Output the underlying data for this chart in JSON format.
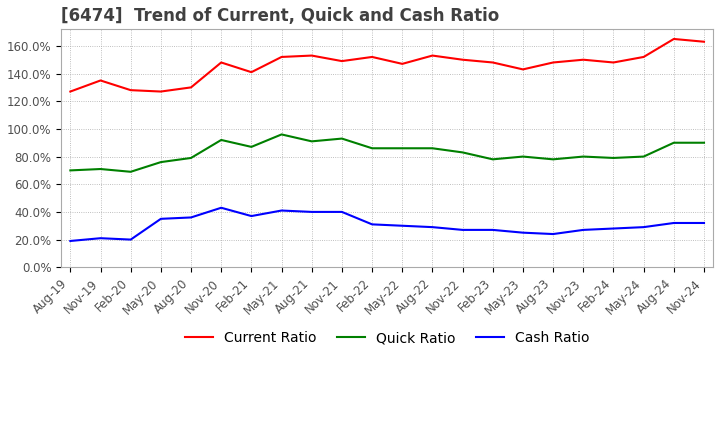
{
  "title": "[6474]  Trend of Current, Quick and Cash Ratio",
  "title_fontsize": 12,
  "title_color": "#404040",
  "background_color": "#ffffff",
  "plot_bg_color": "#ffffff",
  "grid_color": "#aaaaaa",
  "x_labels": [
    "Aug-19",
    "Nov-19",
    "Feb-20",
    "May-20",
    "Aug-20",
    "Nov-20",
    "Feb-21",
    "May-21",
    "Aug-21",
    "Nov-21",
    "Feb-22",
    "May-22",
    "Aug-22",
    "Nov-22",
    "Feb-23",
    "May-23",
    "Aug-23",
    "Nov-23",
    "Feb-24",
    "May-24",
    "Aug-24",
    "Nov-24"
  ],
  "current_ratio": [
    1.27,
    1.35,
    1.28,
    1.27,
    1.3,
    1.48,
    1.41,
    1.52,
    1.53,
    1.49,
    1.52,
    1.47,
    1.53,
    1.5,
    1.48,
    1.43,
    1.48,
    1.5,
    1.48,
    1.52,
    1.65,
    1.63
  ],
  "quick_ratio": [
    0.7,
    0.71,
    0.69,
    0.76,
    0.79,
    0.92,
    0.87,
    0.96,
    0.91,
    0.93,
    0.86,
    0.86,
    0.86,
    0.83,
    0.78,
    0.8,
    0.78,
    0.8,
    0.79,
    0.8,
    0.9,
    0.9
  ],
  "cash_ratio": [
    0.19,
    0.21,
    0.2,
    0.35,
    0.36,
    0.43,
    0.37,
    0.41,
    0.4,
    0.4,
    0.31,
    0.3,
    0.29,
    0.27,
    0.27,
    0.25,
    0.24,
    0.27,
    0.28,
    0.29,
    0.32,
    0.32
  ],
  "current_color": "#ff0000",
  "quick_color": "#008000",
  "cash_color": "#0000ff",
  "line_width": 1.5,
  "legend_labels": [
    "Current Ratio",
    "Quick Ratio",
    "Cash Ratio"
  ],
  "legend_fontsize": 10,
  "tick_fontsize": 8.5,
  "yticks": [
    0.0,
    0.2,
    0.4,
    0.6,
    0.8,
    1.0,
    1.2,
    1.4,
    1.6
  ]
}
